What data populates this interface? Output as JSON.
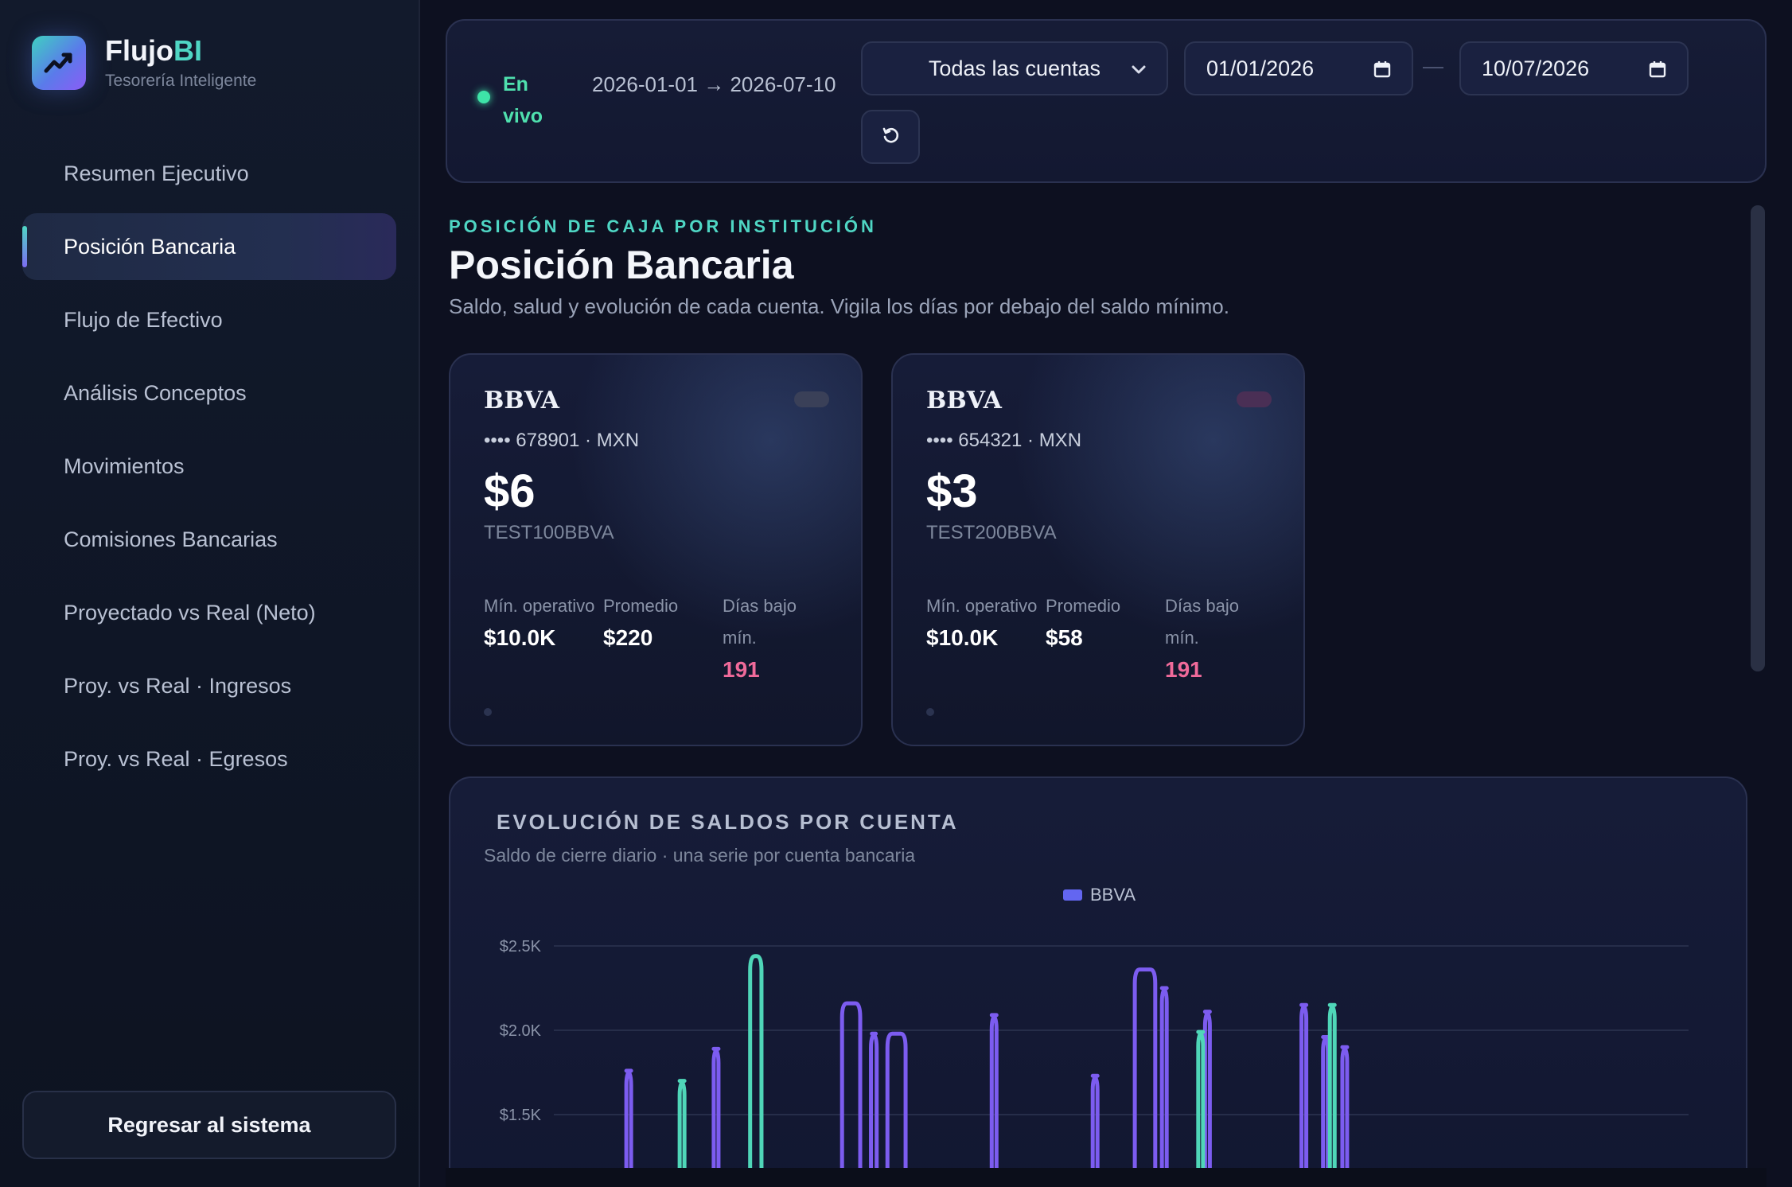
{
  "sidebar": {
    "brand_name": "Flujo",
    "brand_accent": "BI",
    "brand_tagline": "Tesorería Inteligente",
    "logo_icon": "trend-up-icon",
    "items": [
      {
        "label": "Resumen Ejecutivo",
        "active": false
      },
      {
        "label": "Posición Bancaria",
        "active": true
      },
      {
        "label": "Flujo de Efectivo",
        "active": false
      },
      {
        "label": "Análisis Conceptos",
        "active": false
      },
      {
        "label": "Movimientos",
        "active": false
      },
      {
        "label": "Comisiones Bancarias",
        "active": false
      },
      {
        "label": "Proyectado vs Real (Neto)",
        "active": false
      },
      {
        "label": "Proy. vs Real · Ingresos",
        "active": false
      },
      {
        "label": "Proy. vs Real · Egresos",
        "active": false
      }
    ],
    "back_button": "Regresar al sistema"
  },
  "filters": {
    "live_label": "En vivo",
    "range": "2026-01-01 → 2026-07-10",
    "account_select": "Todas las cuentas",
    "date_from": "01/01/2026",
    "date_to": "10/07/2026",
    "refresh_icon": "refresh-icon",
    "calendar_icon": "calendar-icon",
    "chevron_icon": "chevron-down-icon"
  },
  "header": {
    "eyebrow": "POSICIÓN DE CAJA POR INSTITUCIÓN",
    "title": "Posición Bancaria",
    "subtitle": "Saldo, salud y evolución de cada cuenta. Vigila los días por debajo del saldo mínimo."
  },
  "cards": [
    {
      "bank": "BBVA",
      "number": "•••• 678901 · MXN",
      "balance": "$6",
      "code": "TEST100BBVA",
      "min_label": "Mín. operativo",
      "min_value": "$10.0K",
      "avg_label": "Promedio",
      "avg_value": "$220",
      "days_label": "Días bajo mín.",
      "days_value": "191",
      "pill_color": "#3a4058"
    },
    {
      "bank": "BBVA",
      "number": "•••• 654321 · MXN",
      "balance": "$3",
      "code": "TEST200BBVA",
      "min_label": "Mín. operativo",
      "min_value": "$10.0K",
      "avg_label": "Promedio",
      "avg_value": "$58",
      "days_label": "Días bajo mín.",
      "days_value": "191",
      "pill_color": "#4a2f55"
    }
  ],
  "chart": {
    "title": "EVOLUCIÓN DE SALDOS POR CUENTA",
    "subtitle": "Saldo de cierre diario · una serie por cuenta bancaria",
    "legend": "BBVA"
  },
  "chart_data": {
    "type": "line",
    "title": "EVOLUCIÓN DE SALDOS POR CUENTA",
    "ylabel": "",
    "xlabel": "",
    "ytick_labels": [
      "$2.5K",
      "$2.0K",
      "$1.5K"
    ],
    "yticks": [
      2500,
      2000,
      1500
    ],
    "ylim": [
      1200,
      2600
    ],
    "grid": true,
    "legend": "top-center",
    "colors": {
      "purple": "#7c5cf0",
      "teal": "#4fd6b8"
    },
    "series": [
      {
        "name": "BBVA",
        "color": "#7c5cf0",
        "spikes": [
          {
            "x": 0.066,
            "w": 0.004,
            "peak": 1760
          },
          {
            "x": 0.143,
            "w": 0.004,
            "peak": 1890
          },
          {
            "x": 0.262,
            "w": 0.016,
            "peak": 2160
          },
          {
            "x": 0.282,
            "w": 0.005,
            "peak": 1980
          },
          {
            "x": 0.302,
            "w": 0.016,
            "peak": 1980
          },
          {
            "x": 0.388,
            "w": 0.004,
            "peak": 2090
          },
          {
            "x": 0.477,
            "w": 0.004,
            "peak": 1730
          },
          {
            "x": 0.521,
            "w": 0.018,
            "peak": 2360
          },
          {
            "x": 0.538,
            "w": 0.004,
            "peak": 2250
          },
          {
            "x": 0.576,
            "w": 0.004,
            "peak": 2110
          },
          {
            "x": 0.661,
            "w": 0.004,
            "peak": 2150
          },
          {
            "x": 0.68,
            "w": 0.004,
            "peak": 1960
          },
          {
            "x": 0.697,
            "w": 0.004,
            "peak": 1900
          }
        ]
      },
      {
        "name": "",
        "color": "#4fd6b8",
        "spikes": [
          {
            "x": 0.113,
            "w": 0.004,
            "peak": 1700
          },
          {
            "x": 0.178,
            "w": 0.01,
            "peak": 2440
          },
          {
            "x": 0.57,
            "w": 0.004,
            "peak": 1990
          },
          {
            "x": 0.686,
            "w": 0.004,
            "peak": 2150
          }
        ]
      }
    ]
  }
}
